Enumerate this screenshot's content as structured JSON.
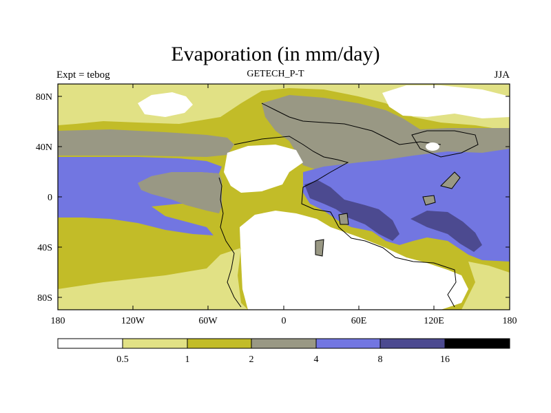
{
  "title": "Evaporation (in mm/day)",
  "subtitle": "GETECH_P-T",
  "left_label": "Expt = tebog",
  "right_label": "JJA",
  "lat_ticks": [
    "80N",
    "40N",
    "0",
    "40S",
    "80S"
  ],
  "lon_ticks": [
    "180",
    "120W",
    "60W",
    "0",
    "60E",
    "120E",
    "180"
  ],
  "legend": {
    "labels": [
      "0.5",
      "1",
      "2",
      "4",
      "8",
      "16"
    ],
    "colors": [
      "#ffffff",
      "#e1e185",
      "#c2bc28",
      "#999884",
      "#7276e1",
      "#4c4a90",
      "#000000"
    ]
  },
  "colors": {
    "very_low": "#ffffff",
    "low": "#e1e185",
    "mid_low": "#c2bc28",
    "mid": "#999884",
    "high": "#7276e1",
    "very_high": "#4c4a90",
    "extreme": "#000000"
  }
}
